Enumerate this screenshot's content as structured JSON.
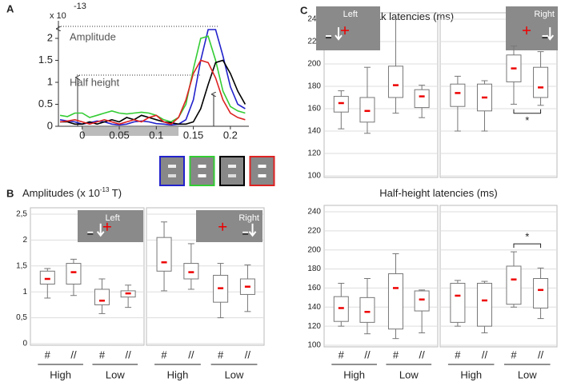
{
  "chart_data": [
    {
      "type": "line",
      "panel": "A",
      "axis_exponent": [
        "x 10",
        "-13"
      ],
      "annotations": [
        "Amplitude",
        "Half height"
      ],
      "x": [
        -0.03,
        -0.02,
        -0.01,
        0,
        0.01,
        0.02,
        0.03,
        0.04,
        0.05,
        0.06,
        0.07,
        0.08,
        0.09,
        0.1,
        0.11,
        0.12,
        0.13,
        0.14,
        0.15,
        0.16,
        0.17,
        0.18,
        0.19,
        0.2,
        0.21,
        0.22
      ],
      "series": [
        {
          "color": "#2222cc",
          "values": [
            0.15,
            0.12,
            0.1,
            0.05,
            0.08,
            0.12,
            0.1,
            0.05,
            0.03,
            0.05,
            0.1,
            0.12,
            0.1,
            0.06,
            0.05,
            0.03,
            0.05,
            0.15,
            0.6,
            1.5,
            2.2,
            2.2,
            1.6,
            0.9,
            0.5,
            0.4
          ]
        },
        {
          "color": "#33cc33",
          "values": [
            0.25,
            0.22,
            0.3,
            0.3,
            0.2,
            0.25,
            0.3,
            0.35,
            0.3,
            0.28,
            0.3,
            0.32,
            0.3,
            0.25,
            0.15,
            0.1,
            0.2,
            0.5,
            1.3,
            2.0,
            2.05,
            1.5,
            0.8,
            0.45,
            0.35,
            0.3
          ]
        },
        {
          "color": "#000000",
          "values": [
            0.1,
            0.1,
            0.05,
            0.05,
            0.1,
            0.05,
            0.1,
            0.15,
            0.1,
            0.2,
            0.15,
            0.25,
            0.2,
            0.15,
            0.1,
            0.08,
            0.05,
            0.05,
            0.1,
            0.4,
            0.95,
            1.45,
            1.5,
            1.2,
            0.8,
            0.5
          ]
        },
        {
          "color": "#dd2222",
          "values": [
            0.1,
            0.12,
            0.15,
            0.1,
            0.05,
            0.1,
            0.15,
            0.1,
            0.05,
            0.1,
            0.15,
            0.1,
            0.2,
            0.25,
            0.1,
            0.05,
            0.2,
            0.6,
            1.2,
            1.5,
            1.45,
            1.1,
            0.6,
            0.3,
            0.2,
            0.15
          ]
        }
      ],
      "xlim": [
        -0.03,
        0.225
      ],
      "xticks": [
        0,
        0.05,
        0.1,
        0.15,
        0.2
      ],
      "ylim": [
        0,
        2.4
      ],
      "yticks": [
        0,
        0.5,
        1,
        1.5,
        2
      ]
    },
    {
      "type": "box",
      "panel": "B",
      "title": [
        "Amplitudes (x 10",
        "-13",
        " T)"
      ],
      "stimulus": "Left",
      "categories": [
        "#",
        "//",
        "#",
        "//"
      ],
      "groups": [
        "High",
        "Low"
      ],
      "boxes": [
        {
          "min": 0.88,
          "q1": 1.15,
          "median": 1.25,
          "q3": 1.4,
          "max": 1.45
        },
        {
          "min": 0.93,
          "q1": 1.15,
          "median": 1.38,
          "q3": 1.55,
          "max": 1.63
        },
        {
          "min": 0.58,
          "q1": 0.75,
          "median": 0.83,
          "q3": 1.05,
          "max": 1.25
        },
        {
          "min": 0.7,
          "q1": 0.9,
          "median": 0.97,
          "q3": 1.02,
          "max": 1.13
        }
      ],
      "ylim": [
        0,
        2.5
      ],
      "yticks": [
        0,
        {
          "value": 0.5,
          "label": "0,5"
        },
        1,
        {
          "value": 1.5,
          "label": "1,5"
        },
        2,
        {
          "value": 2.5,
          "label": "2,5"
        }
      ]
    },
    {
      "type": "box",
      "stimulus": "Right",
      "categories": [
        "#",
        "//",
        "#",
        "//"
      ],
      "groups": [
        "High",
        "Low"
      ],
      "boxes": [
        {
          "min": 1.02,
          "q1": 1.4,
          "median": 1.57,
          "q3": 2.05,
          "max": 2.35
        },
        {
          "min": 1.05,
          "q1": 1.25,
          "median": 1.38,
          "q3": 1.55,
          "max": 1.93
        },
        {
          "min": 0.5,
          "q1": 0.8,
          "median": 1.07,
          "q3": 1.32,
          "max": 1.55
        },
        {
          "min": 0.62,
          "q1": 0.95,
          "median": 1.1,
          "q3": 1.25,
          "max": 1.52
        }
      ],
      "ylim": [
        0,
        2.5
      ],
      "yticks": [
        0,
        0.5,
        1,
        1.5,
        2,
        2.5
      ]
    },
    {
      "type": "box",
      "panel": "C",
      "title": [
        "Peak latencies (ms)"
      ],
      "stimulus": "Left",
      "boxes": [
        {
          "min": 142,
          "q1": 157,
          "median": 165,
          "q3": 171,
          "max": 176
        },
        {
          "min": 138,
          "q1": 148,
          "median": 158,
          "q3": 170,
          "max": 197
        },
        {
          "min": 156,
          "q1": 170,
          "median": 181,
          "q3": 198,
          "max": 240
        },
        {
          "min": 152,
          "q1": 161,
          "median": 171,
          "q3": 177,
          "max": 181
        }
      ],
      "ylim": [
        100,
        240
      ],
      "yticks": [
        100,
        120,
        140,
        160,
        180,
        200,
        220,
        240
      ]
    },
    {
      "type": "box",
      "stimulus": "Right",
      "annotation": "*",
      "boxes": [
        {
          "min": 140,
          "q1": 162,
          "median": 174,
          "q3": 182,
          "max": 189
        },
        {
          "min": 140,
          "q1": 158,
          "median": 170,
          "q3": 182,
          "max": 185
        },
        {
          "min": 164,
          "q1": 184,
          "median": 196,
          "q3": 208,
          "max": 216
        },
        {
          "min": 163,
          "q1": 170,
          "median": 179,
          "q3": 197,
          "max": 211
        }
      ],
      "ylim": [
        100,
        240
      ],
      "yticks": [
        100,
        120,
        140,
        160,
        180,
        200,
        220,
        240
      ]
    },
    {
      "type": "box",
      "title": [
        "Half-height latencies (ms)"
      ],
      "categories": [
        "#",
        "//",
        "#",
        "//"
      ],
      "groups": [
        "High",
        "Low"
      ],
      "boxes": [
        {
          "min": 120,
          "q1": 125,
          "median": 139,
          "q3": 151,
          "max": 165
        },
        {
          "min": 112,
          "q1": 124,
          "median": 135,
          "q3": 150,
          "max": 170
        },
        {
          "min": 107,
          "q1": 117,
          "median": 160,
          "q3": 175,
          "max": 196
        },
        {
          "min": 113,
          "q1": 136,
          "median": 148,
          "q3": 157,
          "max": 158
        }
      ],
      "ylim": [
        100,
        240
      ],
      "yticks": [
        100,
        120,
        140,
        160,
        180,
        200,
        220,
        240
      ]
    },
    {
      "type": "box",
      "annotation": "*",
      "categories": [
        "#",
        "//",
        "#",
        "//"
      ],
      "groups": [
        "High",
        "Low"
      ],
      "boxes": [
        {
          "min": 120,
          "q1": 124,
          "median": 152,
          "q3": 165,
          "max": 168
        },
        {
          "min": 113,
          "q1": 120,
          "median": 147,
          "q3": 165,
          "max": 167
        },
        {
          "min": 140,
          "q1": 143,
          "median": 169,
          "q3": 183,
          "max": 198
        },
        {
          "min": 128,
          "q1": 139,
          "median": 158,
          "q3": 170,
          "max": 181
        }
      ],
      "ylim": [
        100,
        240
      ],
      "yticks": [
        100,
        120,
        140,
        160,
        180,
        200,
        220,
        240
      ]
    }
  ]
}
